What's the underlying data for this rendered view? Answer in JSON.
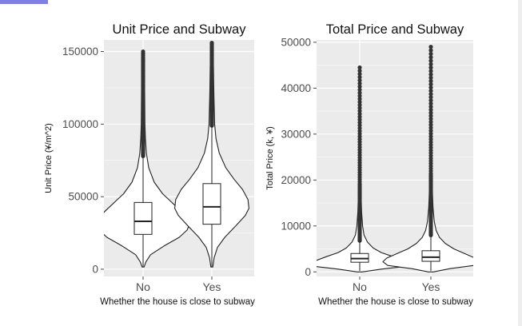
{
  "chart_data": [
    {
      "type": "violin",
      "title": "Unit Price and Subway",
      "xlabel": "Whether the house is close to subway",
      "ylabel": "Unit Price (¥/m^2)",
      "categories": [
        "No",
        "Yes"
      ],
      "ylim": [
        -5000,
        158000
      ],
      "yticks": [
        0,
        50000,
        100000,
        150000
      ],
      "ytick_labels": [
        "0",
        "50000",
        "100000",
        "150000"
      ],
      "grid": true,
      "colors": {
        "panel": "#ebebeb",
        "grid": "#ffffff",
        "fill": "#ffffff",
        "stroke": "#222222",
        "outlier": "#333333"
      },
      "series": [
        {
          "category": "No",
          "box": {
            "q1": 24000,
            "median": 33000,
            "q3": 46000,
            "whisker_low": 1500,
            "whisker_high": 78000
          },
          "max": 150000,
          "violin": [
            [
              1500,
              0.02
            ],
            [
              5000,
              0.06
            ],
            [
              10000,
              0.16
            ],
            [
              16000,
              0.45
            ],
            [
              22000,
              0.78
            ],
            [
              27000,
              0.95
            ],
            [
              31000,
              1.0
            ],
            [
              35000,
              0.96
            ],
            [
              40000,
              0.82
            ],
            [
              46000,
              0.62
            ],
            [
              52000,
              0.42
            ],
            [
              60000,
              0.24
            ],
            [
              70000,
              0.12
            ],
            [
              80000,
              0.07
            ],
            [
              90000,
              0.05
            ],
            [
              100000,
              0.04
            ],
            [
              120000,
              0.035
            ],
            [
              140000,
              0.03
            ],
            [
              150000,
              0.02
            ]
          ]
        },
        {
          "category": "Yes",
          "box": {
            "q1": 31000,
            "median": 43000,
            "q3": 59000,
            "whisker_low": 1500,
            "whisker_high": 99000
          },
          "max": 156000,
          "violin": [
            [
              1500,
              0.02
            ],
            [
              8000,
              0.05
            ],
            [
              15000,
              0.12
            ],
            [
              22000,
              0.28
            ],
            [
              30000,
              0.52
            ],
            [
              37000,
              0.72
            ],
            [
              42000,
              0.8
            ],
            [
              48000,
              0.78
            ],
            [
              55000,
              0.66
            ],
            [
              62000,
              0.48
            ],
            [
              70000,
              0.3
            ],
            [
              80000,
              0.16
            ],
            [
              90000,
              0.09
            ],
            [
              100000,
              0.06
            ],
            [
              120000,
              0.045
            ],
            [
              140000,
              0.035
            ],
            [
              150000,
              0.025
            ]
          ]
        }
      ]
    },
    {
      "type": "violin",
      "title": "Total Price and Subway",
      "xlabel": "Whether the house is close to subway",
      "ylabel": "Total Price (k, ¥)",
      "categories": [
        "No",
        "Yes"
      ],
      "ylim": [
        -1000,
        50500
      ],
      "yticks": [
        0,
        10000,
        20000,
        30000,
        40000,
        50000
      ],
      "ytick_labels": [
        "0",
        "10000",
        "20000",
        "30000",
        "40000",
        "50000"
      ],
      "grid": true,
      "colors": {
        "panel": "#ebebeb",
        "grid": "#ffffff",
        "fill": "#ffffff",
        "stroke": "#222222",
        "outlier": "#333333"
      },
      "series": [
        {
          "category": "No",
          "box": {
            "q1": 2100,
            "median": 2900,
            "q3": 4000,
            "whisker_low": 200,
            "whisker_high": 6800
          },
          "max": 44500,
          "violin": [
            [
              0,
              0.05
            ],
            [
              600,
              0.45
            ],
            [
              1200,
              0.95
            ],
            [
              1800,
              1.0
            ],
            [
              2500,
              0.9
            ],
            [
              3300,
              0.7
            ],
            [
              4200,
              0.45
            ],
            [
              5200,
              0.28
            ],
            [
              6500,
              0.16
            ],
            [
              8000,
              0.09
            ],
            [
              10000,
              0.06
            ],
            [
              13000,
              0.04
            ],
            [
              16000,
              0.03
            ],
            [
              20000,
              0.02
            ],
            [
              30000,
              0.015
            ],
            [
              44500,
              0.01
            ]
          ]
        },
        {
          "category": "Yes",
          "box": {
            "q1": 2300,
            "median": 3200,
            "q3": 4600,
            "whisker_low": 200,
            "whisker_high": 8000
          },
          "max": 49000,
          "violin": [
            [
              0,
              0.05
            ],
            [
              700,
              0.4
            ],
            [
              1400,
              0.9
            ],
            [
              2200,
              1.0
            ],
            [
              3000,
              0.92
            ],
            [
              3900,
              0.72
            ],
            [
              5000,
              0.48
            ],
            [
              6200,
              0.3
            ],
            [
              7500,
              0.18
            ],
            [
              9000,
              0.11
            ],
            [
              11000,
              0.07
            ],
            [
              14000,
              0.045
            ],
            [
              18000,
              0.03
            ],
            [
              24000,
              0.02
            ],
            [
              34000,
              0.015
            ],
            [
              49000,
              0.01
            ]
          ]
        }
      ]
    }
  ]
}
